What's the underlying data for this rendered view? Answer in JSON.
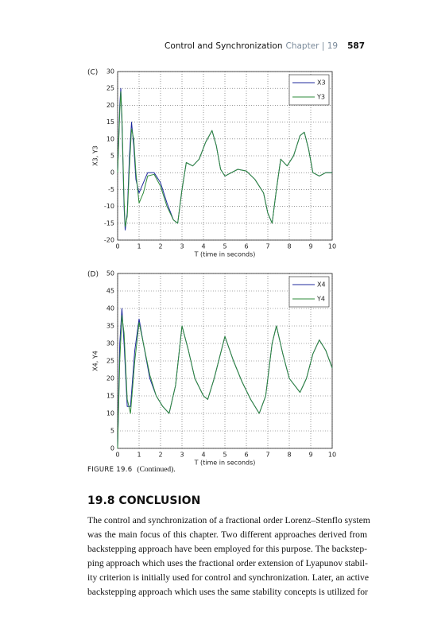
{
  "header": {
    "title": "Control and Synchronization",
    "chapter": "Chapter | 19",
    "page": "587"
  },
  "chart_data": [
    {
      "type": "line",
      "panel_label": "(C)",
      "xlabel": "T (time in seconds)",
      "ylabel": "X3, Y3",
      "x": [
        0,
        0.1,
        0.15,
        0.2,
        0.3,
        0.35,
        0.45,
        0.55,
        0.65,
        0.75,
        0.85,
        1.0,
        1.2,
        1.4,
        1.7,
        2.0,
        2.3,
        2.6,
        2.8,
        3.0,
        3.2,
        3.5,
        3.8,
        4.1,
        4.4,
        4.6,
        4.8,
        5.0,
        5.3,
        5.6,
        6.0,
        6.4,
        6.8,
        7.0,
        7.2,
        7.4,
        7.6,
        7.9,
        8.2,
        8.5,
        8.7,
        8.9,
        9.1,
        9.4,
        9.7,
        10.0
      ],
      "series": [
        {
          "name": "X3",
          "color": "#1f2a9e",
          "values": [
            0,
            20,
            25,
            15,
            -10,
            -17,
            -12,
            5,
            15,
            8,
            -2,
            -6,
            -3,
            0,
            0,
            -3,
            -9,
            -14,
            -15,
            -5,
            3,
            2,
            4,
            9,
            12.5,
            8,
            1,
            -1,
            0,
            1,
            0.5,
            -2,
            -6,
            -12,
            -15,
            -5,
            4,
            2,
            5,
            11,
            12,
            7,
            0,
            -1,
            0,
            0
          ]
        },
        {
          "name": "Y3",
          "color": "#2e8b3a",
          "values": [
            0,
            18,
            24,
            17,
            -8,
            -16,
            -13,
            2,
            13,
            10,
            0,
            -9,
            -6,
            -1,
            -0.5,
            -4,
            -10,
            -14,
            -15,
            -5,
            3,
            2,
            4,
            9,
            12.5,
            8,
            1,
            -1,
            0,
            1,
            0.5,
            -2,
            -6,
            -12,
            -15,
            -5,
            4,
            2,
            5,
            11,
            12,
            7,
            0,
            -1,
            0,
            0
          ]
        }
      ],
      "xlim": [
        0,
        10
      ],
      "xticks": [
        0,
        1,
        2,
        3,
        4,
        5,
        6,
        7,
        8,
        9,
        10
      ],
      "ylim": [
        -20,
        30
      ],
      "yticks": [
        -20,
        -15,
        -10,
        -5,
        0,
        5,
        10,
        15,
        20,
        25,
        30
      ],
      "grid": true,
      "legend": "upper-right"
    },
    {
      "type": "line",
      "panel_label": "(D)",
      "xlabel": "T (time in seconds)",
      "ylabel": "X4, Y4",
      "x": [
        0,
        0.1,
        0.2,
        0.3,
        0.45,
        0.6,
        0.8,
        1.0,
        1.2,
        1.5,
        1.8,
        2.1,
        2.4,
        2.7,
        3.0,
        3.3,
        3.6,
        4.0,
        4.2,
        4.5,
        5.0,
        5.4,
        5.8,
        6.2,
        6.6,
        6.9,
        7.2,
        7.4,
        7.7,
        8.0,
        8.5,
        8.8,
        9.1,
        9.4,
        9.7,
        10.0
      ],
      "series": [
        {
          "name": "X4",
          "color": "#1f2a9e",
          "values": [
            0,
            30,
            40,
            30,
            12,
            12,
            28,
            37,
            30,
            20,
            15,
            12,
            10,
            18,
            35,
            28,
            20,
            15,
            14,
            20,
            32,
            25,
            19,
            14,
            10,
            15,
            30,
            35,
            27,
            20,
            16,
            20,
            27,
            31,
            28,
            23
          ]
        },
        {
          "name": "Y4",
          "color": "#2e8b3a",
          "values": [
            0,
            25,
            38,
            33,
            14,
            10,
            25,
            36,
            30,
            21,
            15,
            12,
            10,
            18,
            35,
            28,
            20,
            15,
            14,
            20,
            32,
            25,
            19,
            14,
            10,
            15,
            30,
            35,
            27,
            20,
            16,
            20,
            27,
            31,
            28,
            23
          ]
        }
      ],
      "xlim": [
        0,
        10
      ],
      "xticks": [
        0,
        1,
        2,
        3,
        4,
        5,
        6,
        7,
        8,
        9,
        10
      ],
      "ylim": [
        0,
        50
      ],
      "yticks": [
        0,
        5,
        10,
        15,
        20,
        25,
        30,
        35,
        40,
        45,
        50
      ],
      "grid": true,
      "legend": "upper-right"
    }
  ],
  "caption": {
    "label": "FIGURE 19.6",
    "text": "(Continued)."
  },
  "section": {
    "title": "19.8 CONCLUSION",
    "lines": [
      "The control and synchronization of a fractional order Lorenz–Stenflo system",
      "was the main focus of this chapter. Two different approaches derived from",
      "backstepping approach have been employed for this purpose. The backstep-",
      "ping approach which uses the fractional order extension of Lyapunov stabil-",
      "ity criterion is initially used for control and synchronization. Later, an active",
      "backstepping approach which uses the same stability concepts is utilized for"
    ]
  }
}
